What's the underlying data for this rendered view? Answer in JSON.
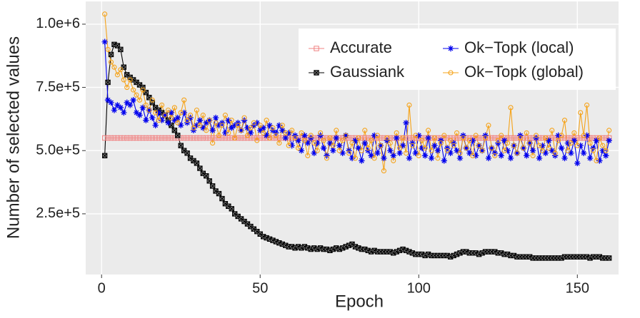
{
  "chart_data": {
    "type": "line",
    "xlabel": "Epoch",
    "ylabel": "Number of selected values",
    "xlim": [
      -5,
      163
    ],
    "ylim": [
      10000,
      1090000
    ],
    "xticks": [
      0,
      50,
      100,
      150
    ],
    "yticks": [
      {
        "value": 250000,
        "label": "2.5e+5"
      },
      {
        "value": 500000,
        "label": "5.0e+5"
      },
      {
        "value": 750000,
        "label": "7.5e+5"
      },
      {
        "value": 1000000,
        "label": "1.0e+6"
      }
    ],
    "grid": true,
    "legend_position": "top-right",
    "x": [
      1,
      2,
      3,
      4,
      5,
      6,
      7,
      8,
      9,
      10,
      11,
      12,
      13,
      14,
      15,
      16,
      17,
      18,
      19,
      20,
      21,
      22,
      23,
      24,
      25,
      26,
      27,
      28,
      29,
      30,
      31,
      32,
      33,
      34,
      35,
      36,
      37,
      38,
      39,
      40,
      41,
      42,
      43,
      44,
      45,
      46,
      47,
      48,
      49,
      50,
      51,
      52,
      53,
      54,
      55,
      56,
      57,
      58,
      59,
      60,
      61,
      62,
      63,
      64,
      65,
      66,
      67,
      68,
      69,
      70,
      71,
      72,
      73,
      74,
      75,
      76,
      77,
      78,
      79,
      80,
      81,
      82,
      83,
      84,
      85,
      86,
      87,
      88,
      89,
      90,
      91,
      92,
      93,
      94,
      95,
      96,
      97,
      98,
      99,
      100,
      101,
      102,
      103,
      104,
      105,
      106,
      107,
      108,
      109,
      110,
      111,
      112,
      113,
      114,
      115,
      116,
      117,
      118,
      119,
      120,
      121,
      122,
      123,
      124,
      125,
      126,
      127,
      128,
      129,
      130,
      131,
      132,
      133,
      134,
      135,
      136,
      137,
      138,
      139,
      140,
      141,
      142,
      143,
      144,
      145,
      146,
      147,
      148,
      149,
      150,
      151,
      152,
      153,
      154,
      155,
      156,
      157,
      158,
      159,
      160
    ],
    "series": [
      {
        "name": "Accurate",
        "color": "#f08080",
        "marker": "square",
        "values": [
          550000,
          550000,
          550000,
          550000,
          550000,
          550000,
          550000,
          550000,
          550000,
          550000,
          550000,
          550000,
          550000,
          550000,
          550000,
          550000,
          550000,
          550000,
          550000,
          550000,
          550000,
          550000,
          550000,
          550000,
          550000,
          550000,
          550000,
          550000,
          550000,
          550000,
          550000,
          550000,
          550000,
          550000,
          550000,
          550000,
          550000,
          550000,
          550000,
          550000,
          550000,
          550000,
          550000,
          550000,
          550000,
          550000,
          550000,
          550000,
          550000,
          550000,
          550000,
          550000,
          550000,
          550000,
          550000,
          550000,
          550000,
          550000,
          550000,
          550000,
          550000,
          550000,
          550000,
          550000,
          550000,
          550000,
          550000,
          550000,
          550000,
          550000,
          550000,
          550000,
          550000,
          550000,
          550000,
          550000,
          550000,
          550000,
          550000,
          550000,
          550000,
          550000,
          550000,
          550000,
          550000,
          550000,
          550000,
          550000,
          550000,
          550000,
          550000,
          550000,
          550000,
          550000,
          550000,
          550000,
          550000,
          550000,
          550000,
          550000,
          550000,
          550000,
          550000,
          550000,
          550000,
          550000,
          550000,
          550000,
          550000,
          550000,
          550000,
          550000,
          550000,
          550000,
          550000,
          550000,
          550000,
          550000,
          550000,
          550000,
          550000,
          550000,
          550000,
          550000,
          550000,
          550000,
          550000,
          550000,
          550000,
          550000,
          550000,
          550000,
          550000,
          550000,
          550000,
          550000,
          550000,
          550000,
          550000,
          550000,
          550000,
          550000,
          550000,
          550000,
          550000,
          550000,
          550000,
          550000,
          550000,
          550000,
          550000,
          550000,
          550000,
          550000,
          550000,
          550000,
          550000,
          550000,
          550000,
          550000
        ]
      },
      {
        "name": "Gaussiank",
        "color": "#000000",
        "marker": "crossed-square",
        "values": [
          480000,
          770000,
          880000,
          920000,
          915000,
          900000,
          830000,
          800000,
          790000,
          780000,
          770000,
          760000,
          750000,
          730000,
          710000,
          690000,
          670000,
          660000,
          650000,
          640000,
          620000,
          600000,
          580000,
          560000,
          520000,
          500000,
          490000,
          470000,
          460000,
          450000,
          430000,
          410000,
          400000,
          380000,
          360000,
          340000,
          330000,
          310000,
          290000,
          280000,
          270000,
          250000,
          240000,
          230000,
          220000,
          210000,
          200000,
          190000,
          180000,
          170000,
          160000,
          155000,
          150000,
          145000,
          140000,
          135000,
          130000,
          125000,
          120000,
          120000,
          115000,
          120000,
          115000,
          120000,
          115000,
          110000,
          115000,
          110000,
          115000,
          110000,
          110000,
          105000,
          110000,
          115000,
          110000,
          115000,
          120000,
          125000,
          130000,
          120000,
          115000,
          110000,
          110000,
          105000,
          100000,
          105000,
          100000,
          100000,
          100000,
          100000,
          100000,
          95000,
          100000,
          105000,
          110000,
          105000,
          100000,
          95000,
          90000,
          90000,
          90000,
          85000,
          90000,
          85000,
          85000,
          85000,
          85000,
          85000,
          85000,
          80000,
          85000,
          90000,
          95000,
          100000,
          100000,
          95000,
          95000,
          95000,
          90000,
          95000,
          100000,
          100000,
          100000,
          100000,
          95000,
          95000,
          90000,
          90000,
          85000,
          85000,
          80000,
          80000,
          80000,
          80000,
          80000,
          75000,
          75000,
          75000,
          75000,
          75000,
          75000,
          75000,
          75000,
          75000,
          75000,
          80000,
          80000,
          80000,
          80000,
          80000,
          80000,
          80000,
          80000,
          75000,
          80000,
          80000,
          80000,
          75000,
          75000,
          75000
        ]
      },
      {
        "name": "Ok−Topk (local)",
        "color": "#0000ee",
        "marker": "asterisk",
        "values": [
          930000,
          700000,
          690000,
          660000,
          680000,
          670000,
          650000,
          690000,
          680000,
          700000,
          650000,
          640000,
          670000,
          620000,
          660000,
          630000,
          600000,
          650000,
          620000,
          640000,
          610000,
          650000,
          620000,
          630000,
          600000,
          650000,
          610000,
          630000,
          580000,
          600000,
          620000,
          590000,
          610000,
          620000,
          580000,
          630000,
          600000,
          610000,
          570000,
          620000,
          590000,
          600000,
          610000,
          580000,
          620000,
          590000,
          570000,
          600000,
          610000,
          580000,
          590000,
          560000,
          600000,
          580000,
          570000,
          600000,
          580000,
          550000,
          570000,
          520000,
          560000,
          540000,
          500000,
          560000,
          530000,
          550000,
          490000,
          530000,
          560000,
          510000,
          480000,
          530000,
          500000,
          550000,
          520000,
          490000,
          560000,
          500000,
          470000,
          540000,
          510000,
          460000,
          530000,
          500000,
          480000,
          560000,
          490000,
          520000,
          470000,
          540000,
          500000,
          480000,
          550000,
          490000,
          520000,
          610000,
          470000,
          530000,
          490000,
          560000,
          510000,
          480000,
          550000,
          470000,
          520000,
          500000,
          540000,
          460000,
          510000,
          490000,
          530000,
          500000,
          470000,
          560000,
          510000,
          490000,
          540000,
          480000,
          520000,
          500000,
          560000,
          470000,
          510000,
          490000,
          530000,
          480000,
          540000,
          500000,
          470000,
          520000,
          490000,
          560000,
          510000,
          480000,
          530000,
          500000,
          550000,
          470000,
          520000,
          490000,
          540000,
          500000,
          480000,
          560000,
          510000,
          470000,
          530000,
          490000,
          540000,
          450000,
          520000,
          490000,
          560000,
          470000,
          510000,
          540000,
          460000,
          500000,
          480000,
          540000
        ]
      },
      {
        "name": "Ok−Topk (global)",
        "color": "#f5a31a",
        "marker": "circle",
        "values": [
          1040000,
          900000,
          850000,
          830000,
          800000,
          820000,
          780000,
          750000,
          780000,
          740000,
          720000,
          700000,
          740000,
          680000,
          660000,
          700000,
          650000,
          620000,
          680000,
          640000,
          660000,
          630000,
          670000,
          610000,
          650000,
          700000,
          620000,
          640000,
          590000,
          660000,
          600000,
          640000,
          580000,
          620000,
          530000,
          610000,
          560000,
          600000,
          640000,
          570000,
          620000,
          550000,
          600000,
          580000,
          630000,
          560000,
          590000,
          610000,
          540000,
          600000,
          570000,
          620000,
          550000,
          590000,
          560000,
          530000,
          600000,
          570000,
          520000,
          580000,
          550000,
          510000,
          570000,
          540000,
          480000,
          560000,
          530000,
          500000,
          570000,
          540000,
          470000,
          550000,
          520000,
          580000,
          500000,
          540000,
          560000,
          490000,
          530000,
          470000,
          550000,
          500000,
          580000,
          510000,
          540000,
          470000,
          560000,
          520000,
          420000,
          550000,
          530000,
          460000,
          570000,
          510000,
          550000,
          490000,
          680000,
          520000,
          560000,
          480000,
          540000,
          510000,
          580000,
          500000,
          550000,
          470000,
          530000,
          560000,
          500000,
          540000,
          520000,
          570000,
          490000,
          550000,
          510000,
          540000,
          480000,
          560000,
          520000,
          500000,
          550000,
          600000,
          510000,
          480000,
          540000,
          560000,
          500000,
          530000,
          670000,
          520000,
          490000,
          550000,
          510000,
          570000,
          530000,
          480000,
          560000,
          520000,
          500000,
          550000,
          510000,
          580000,
          490000,
          540000,
          560000,
          620000,
          500000,
          530000,
          570000,
          520000,
          650000,
          560000,
          680000,
          530000,
          500000,
          460000,
          550000,
          520000,
          500000,
          580000
        ]
      }
    ]
  }
}
